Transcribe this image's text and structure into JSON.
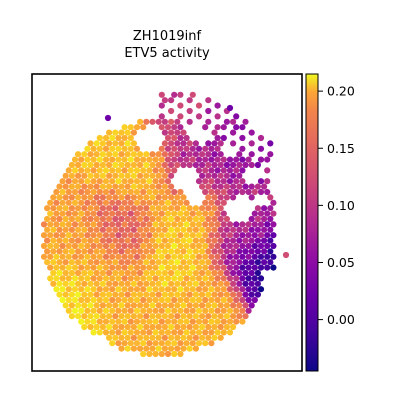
{
  "chart_data": {
    "type": "heatmap",
    "title_lines": [
      "ZH1019inf",
      "ETV5 activity"
    ],
    "colormap": "plasma",
    "colorbar": {
      "range": [
        -0.045,
        0.215
      ],
      "ticks": [
        0.0,
        0.05,
        0.1,
        0.15,
        0.2
      ],
      "tick_labels": [
        "0.00",
        "0.05",
        "0.10",
        "0.15",
        "0.20"
      ],
      "placement": "right"
    },
    "grid": false,
    "hotspots": [
      {
        "u": 0.1,
        "v": 0.78,
        "value": 0.2
      },
      {
        "u": 0.14,
        "v": 0.6,
        "value": 0.16
      },
      {
        "u": 0.28,
        "v": 0.72,
        "value": 0.17
      },
      {
        "u": 0.4,
        "v": 0.3,
        "value": 0.18
      },
      {
        "u": 0.35,
        "v": 0.55,
        "value": 0.11
      },
      {
        "u": 0.55,
        "v": 0.62,
        "value": 0.19
      },
      {
        "u": 0.62,
        "v": 0.5,
        "value": 0.18
      },
      {
        "u": 0.52,
        "v": 0.9,
        "value": 0.17
      },
      {
        "u": 0.72,
        "v": 0.82,
        "value": 0.17
      },
      {
        "u": 0.65,
        "v": 0.3,
        "value": 0.06
      },
      {
        "u": 0.85,
        "v": 0.55,
        "value": 0.06
      },
      {
        "u": 0.95,
        "v": 0.68,
        "value": -0.03
      },
      {
        "u": 0.8,
        "v": 0.2,
        "value": 0.04
      },
      {
        "u": 0.6,
        "v": 0.1,
        "value": 0.08
      }
    ]
  }
}
